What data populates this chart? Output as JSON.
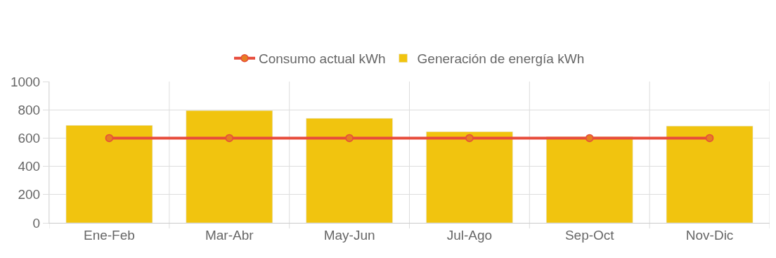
{
  "chart_data": {
    "type": "bar",
    "categories": [
      "Ene-Feb",
      "Mar-Abr",
      "May-Jun",
      "Jul-Ago",
      "Sep-Oct",
      "Nov-Dic"
    ],
    "series": [
      {
        "name": "Consumo actual kWh",
        "type": "line",
        "color": "#e74c3c",
        "marker": "circle",
        "values": [
          600,
          600,
          600,
          600,
          600,
          600
        ]
      },
      {
        "name": "Generación de energía kWh",
        "color": "#f1c40f",
        "values": [
          690,
          795,
          740,
          645,
          610,
          685
        ]
      }
    ],
    "ylim": [
      0,
      1000
    ],
    "yticks": [
      0,
      200,
      400,
      600,
      800,
      1000
    ],
    "grid": true,
    "legend": "top"
  }
}
